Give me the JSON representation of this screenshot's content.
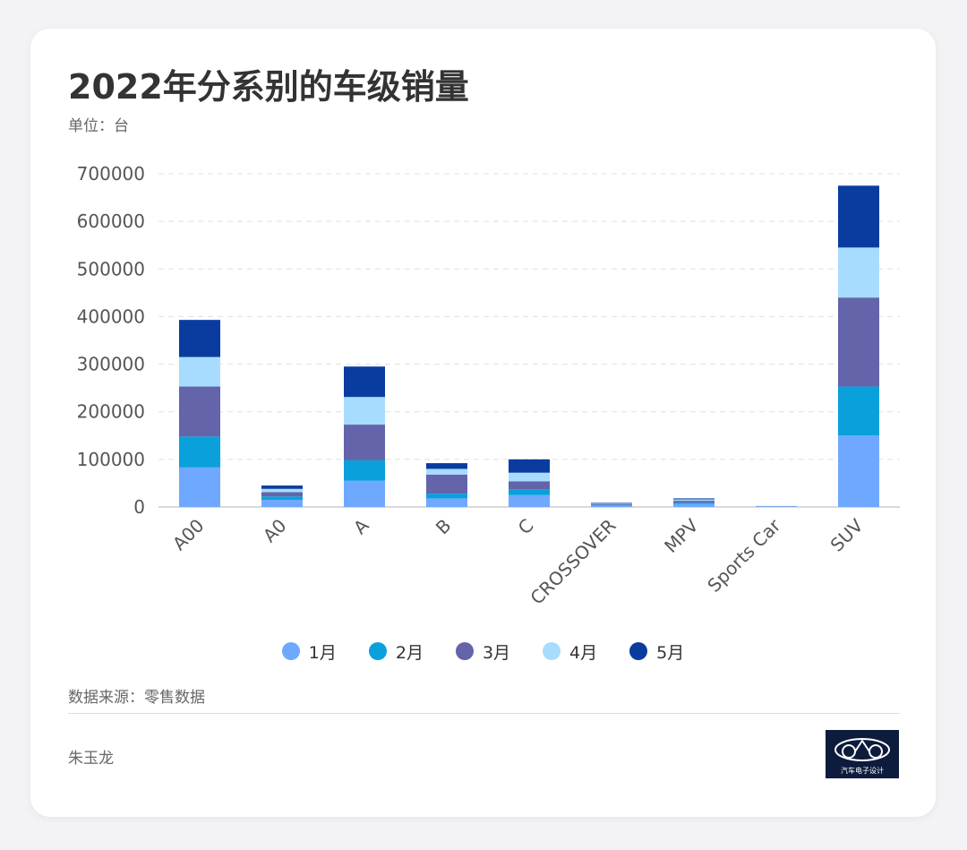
{
  "title": "2022年分系别的车级销量",
  "unit": "单位：台",
  "source": "数据来源：零售数据",
  "author": "朱玉龙",
  "logo": {
    "text": "汽车电子设计",
    "icon": "car-outline-icon"
  },
  "colors": {
    "m1": "#6fa8ff",
    "m2": "#0aa0dc",
    "m3": "#6464aa",
    "m4": "#a8dcff",
    "m5": "#0a3ca0",
    "grid": "#e0e0e0",
    "axis": "#cccccc",
    "tick_text": "#555555"
  },
  "legend": [
    {
      "label": "1月",
      "color": "#6fa8ff"
    },
    {
      "label": "2月",
      "color": "#0aa0dc"
    },
    {
      "label": "3月",
      "color": "#6464aa"
    },
    {
      "label": "4月",
      "color": "#a8dcff"
    },
    {
      "label": "5月",
      "color": "#0a3ca0"
    }
  ],
  "chart_data": {
    "type": "bar",
    "stacked": true,
    "categories": [
      "A00",
      "A0",
      "A",
      "B",
      "C",
      "CROSSOVER",
      "MPV",
      "Sports Car",
      "SUV"
    ],
    "series": [
      {
        "name": "1月",
        "values": [
          83000,
          15000,
          55000,
          18000,
          25000,
          3000,
          6000,
          800,
          150000
        ]
      },
      {
        "name": "2月",
        "values": [
          65000,
          7000,
          43000,
          10000,
          12000,
          1500,
          3000,
          300,
          103000
        ]
      },
      {
        "name": "3月",
        "values": [
          105000,
          9000,
          75000,
          40000,
          17000,
          2000,
          4000,
          400,
          187000
        ]
      },
      {
        "name": "4月",
        "values": [
          62000,
          7000,
          58000,
          12000,
          18000,
          1500,
          3000,
          300,
          105000
        ]
      },
      {
        "name": "5月",
        "values": [
          78000,
          7000,
          64000,
          12000,
          28000,
          1000,
          2000,
          200,
          130000
        ]
      }
    ],
    "ylim": [
      0,
      700000
    ],
    "yticks": [
      "0",
      "100000",
      "200000",
      "300000",
      "400000",
      "500000",
      "600000",
      "700000"
    ],
    "grid": true,
    "legend_position": "bottom"
  }
}
